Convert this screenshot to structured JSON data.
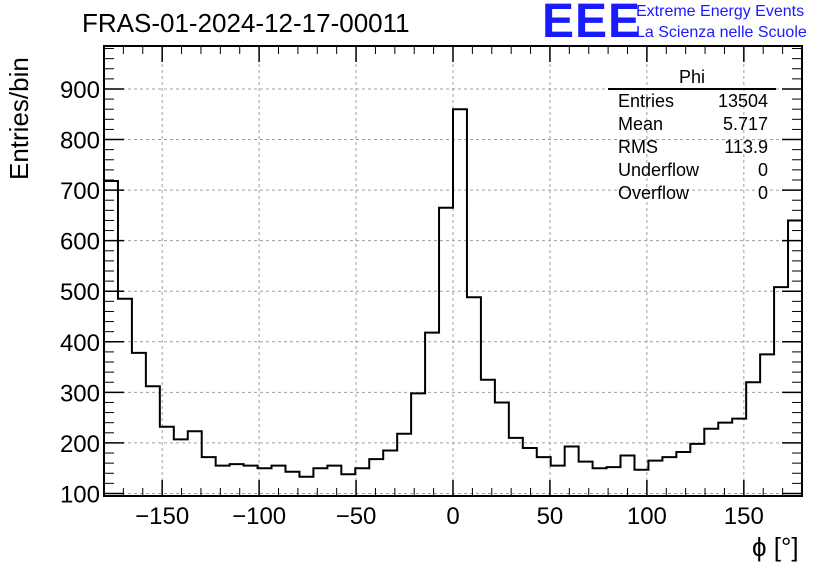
{
  "header": {
    "title": "FRAS-01-2024-12-17-00011",
    "logo_text": "EEE",
    "logo_line1": "Extreme Energy Events",
    "logo_line2": "La Scienza nelle Scuole"
  },
  "stats_box": {
    "title": "Phi",
    "rows": [
      {
        "label": "Entries",
        "value": "13504"
      },
      {
        "label": "Mean",
        "value": "5.717"
      },
      {
        "label": "RMS",
        "value": "113.9"
      },
      {
        "label": "Underflow",
        "value": "0"
      },
      {
        "label": "Overflow",
        "value": "0"
      }
    ]
  },
  "colors": {
    "line": "#000000",
    "grid": "#a0a0a0",
    "logo": "#1a1aff"
  },
  "chart_data": {
    "type": "histogram",
    "title": "FRAS-01-2024-12-17-00011",
    "xlabel": "ϕ [°]",
    "ylabel": "Entries/bin",
    "xlim": [
      -180,
      180
    ],
    "ylim": [
      95,
      985
    ],
    "grid": true,
    "bin_width": 7.2,
    "x_ticks": [
      -150,
      -100,
      -50,
      0,
      50,
      100,
      150
    ],
    "x_tick_labels": [
      "−150",
      "−100",
      "−50",
      "0",
      "50",
      "100",
      "150"
    ],
    "y_ticks": [
      100,
      200,
      300,
      400,
      500,
      600,
      700,
      800,
      900
    ],
    "y_tick_labels": [
      "100",
      "200",
      "300",
      "400",
      "500",
      "600",
      "700",
      "800",
      "900"
    ],
    "values": [
      718,
      485,
      378,
      312,
      232,
      207,
      223,
      172,
      155,
      158,
      155,
      150,
      155,
      143,
      133,
      150,
      155,
      138,
      150,
      168,
      185,
      218,
      298,
      418,
      665,
      860,
      488,
      325,
      280,
      210,
      190,
      172,
      155,
      193,
      163,
      150,
      152,
      175,
      147,
      165,
      172,
      182,
      198,
      228,
      240,
      248,
      320,
      375,
      508,
      640
    ]
  }
}
